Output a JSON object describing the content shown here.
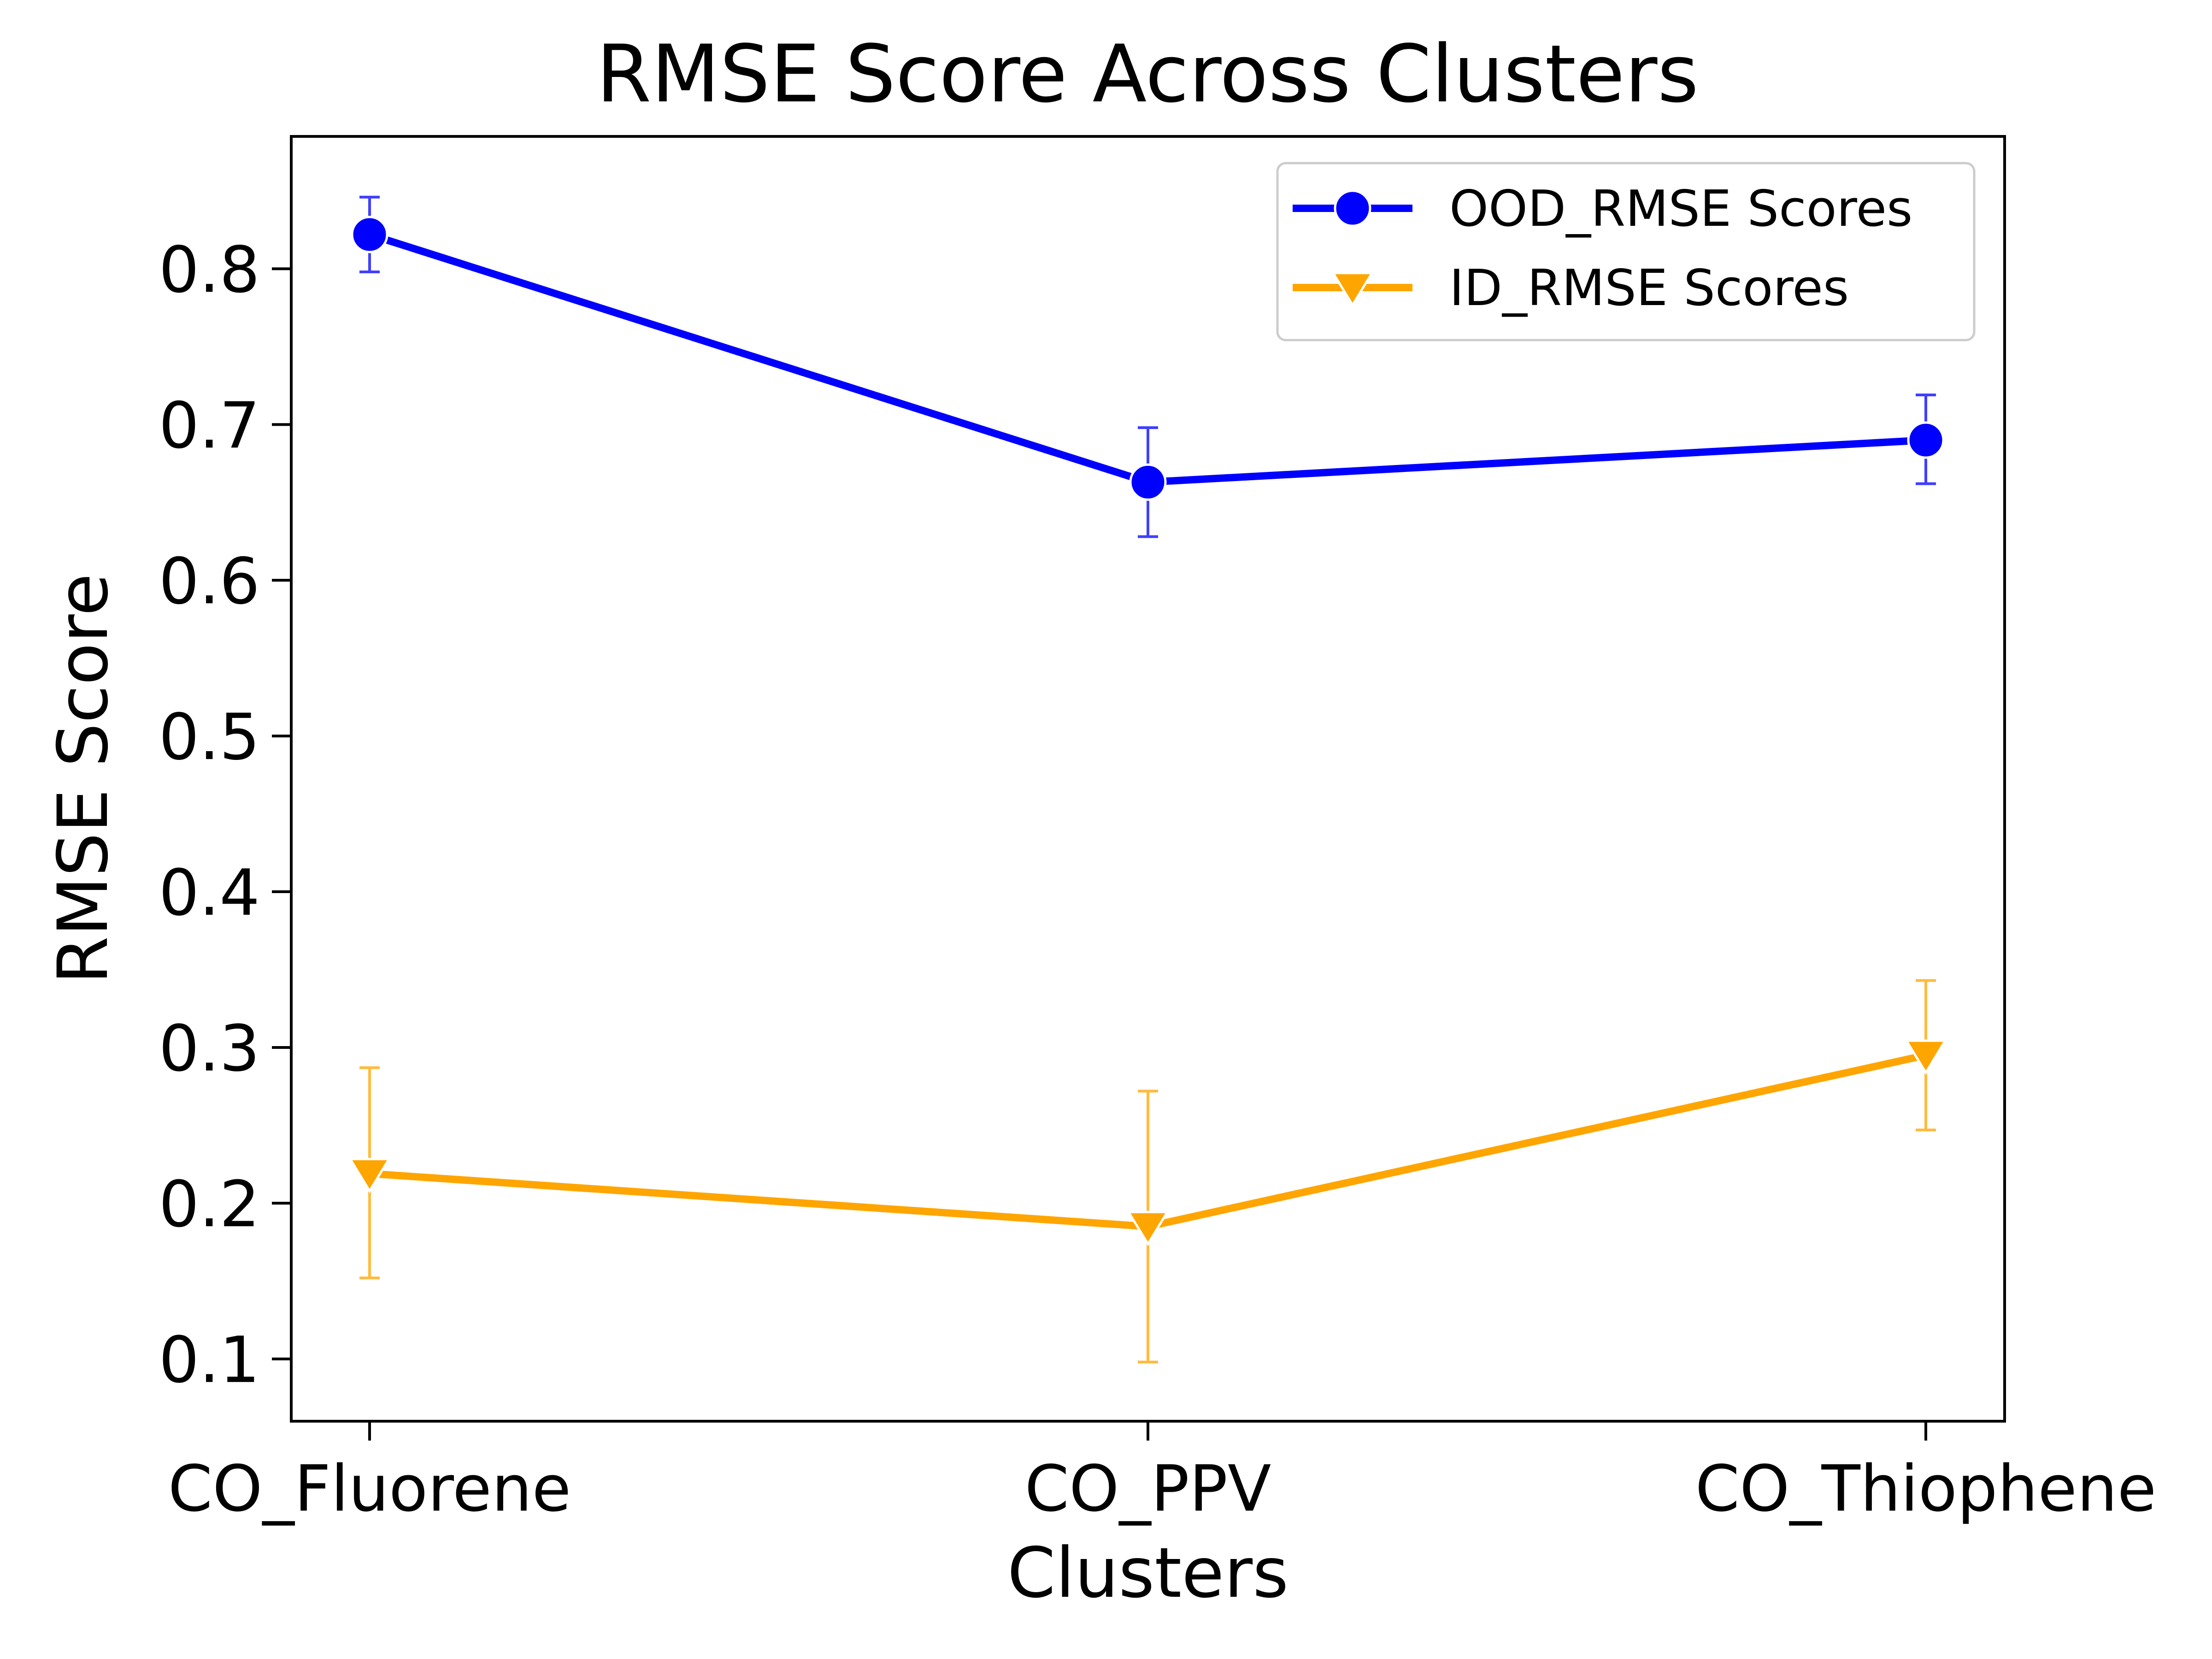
{
  "chart_data": {
    "type": "line",
    "title": "RMSE Score Across Clusters",
    "xlabel": "Clusters",
    "ylabel": "RMSE Score",
    "categories": [
      "CO_Fluorene",
      "CO_PPV",
      "CO_Thiophene"
    ],
    "ylim": [
      0.06,
      0.885
    ],
    "yticks": [
      0.1,
      0.2,
      0.3,
      0.4,
      0.5,
      0.6,
      0.7,
      0.8
    ],
    "ytick_labels": [
      "0.1",
      "0.2",
      "0.3",
      "0.4",
      "0.5",
      "0.6",
      "0.7",
      "0.8"
    ],
    "grid": false,
    "legend_position": "top-right",
    "series": [
      {
        "name": "OOD_RMSE Scores",
        "marker": "circle",
        "color": "#0000ff",
        "values": [
          0.822,
          0.663,
          0.69
        ],
        "error_low": [
          0.798,
          0.628,
          0.662
        ],
        "error_high": [
          0.846,
          0.698,
          0.719
        ]
      },
      {
        "name": "ID_RMSE Scores",
        "marker": "triangle-down",
        "color": "#ffa500",
        "values": [
          0.219,
          0.185,
          0.295
        ],
        "error_low": [
          0.152,
          0.098,
          0.247
        ],
        "error_high": [
          0.287,
          0.272,
          0.343
        ]
      }
    ]
  }
}
